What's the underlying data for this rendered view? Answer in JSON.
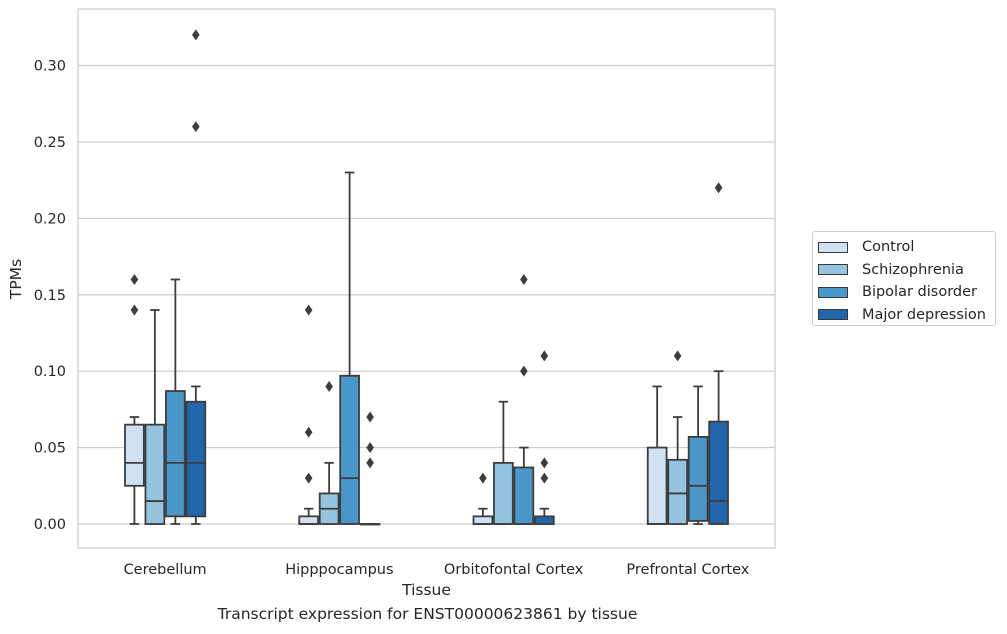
{
  "caption": "Transcript expression for ENST00000623861 by tissue",
  "chart_data": {
    "type": "box",
    "title": "",
    "xlabel": "Tissue",
    "ylabel": "TPMs",
    "ylim": [
      -0.015,
      0.335
    ],
    "yticks": [
      0.0,
      0.05,
      0.1,
      0.15,
      0.2,
      0.25,
      0.3
    ],
    "ytick_labels": [
      "0.00",
      "0.05",
      "0.10",
      "0.15",
      "0.20",
      "0.25",
      "0.30"
    ],
    "grid": "horizontal",
    "legend_position": "right",
    "categories": [
      "Cerebellum",
      "Hipppocampus",
      "Orbitofontal Cortex",
      "Prefrontal Cortex"
    ],
    "series": [
      {
        "name": "Control",
        "color": "#d0e1f2",
        "boxes": [
          {
            "whislo": 0.0,
            "q1": 0.025,
            "med": 0.04,
            "q3": 0.065,
            "whishi": 0.07,
            "fliers": [
              0.14,
              0.16
            ]
          },
          {
            "whislo": 0.0,
            "q1": 0.0,
            "med": 0.0,
            "q3": 0.005,
            "whishi": 0.01,
            "fliers": [
              0.03,
              0.06,
              0.14
            ]
          },
          {
            "whislo": 0.0,
            "q1": 0.0,
            "med": 0.0,
            "q3": 0.005,
            "whishi": 0.01,
            "fliers": [
              0.03
            ]
          },
          {
            "whislo": 0.0,
            "q1": 0.0,
            "med": 0.0,
            "q3": 0.05,
            "whishi": 0.09,
            "fliers": []
          }
        ]
      },
      {
        "name": "Schizophrenia",
        "color": "#94c4df",
        "boxes": [
          {
            "whislo": 0.0,
            "q1": 0.0,
            "med": 0.015,
            "q3": 0.065,
            "whishi": 0.14,
            "fliers": []
          },
          {
            "whislo": 0.0,
            "q1": 0.0,
            "med": 0.01,
            "q3": 0.02,
            "whishi": 0.04,
            "fliers": [
              0.09
            ]
          },
          {
            "whislo": 0.0,
            "q1": 0.0,
            "med": 0.0,
            "q3": 0.04,
            "whishi": 0.08,
            "fliers": []
          },
          {
            "whislo": 0.0,
            "q1": 0.0,
            "med": 0.02,
            "q3": 0.042,
            "whishi": 0.07,
            "fliers": [
              0.11
            ]
          }
        ]
      },
      {
        "name": "Bipolar disorder",
        "color": "#4a98c9",
        "boxes": [
          {
            "whislo": 0.0,
            "q1": 0.005,
            "med": 0.04,
            "q3": 0.087,
            "whishi": 0.16,
            "fliers": []
          },
          {
            "whislo": 0.0,
            "q1": 0.0,
            "med": 0.03,
            "q3": 0.097,
            "whishi": 0.23,
            "fliers": []
          },
          {
            "whislo": 0.0,
            "q1": 0.0,
            "med": 0.0,
            "q3": 0.037,
            "whishi": 0.05,
            "fliers": [
              0.1,
              0.16
            ]
          },
          {
            "whislo": 0.0,
            "q1": 0.002,
            "med": 0.025,
            "q3": 0.057,
            "whishi": 0.09,
            "fliers": []
          }
        ]
      },
      {
        "name": "Major depression",
        "color": "#2166ac",
        "boxes": [
          {
            "whislo": 0.0,
            "q1": 0.005,
            "med": 0.04,
            "q3": 0.08,
            "whishi": 0.09,
            "fliers": [
              0.26,
              0.32
            ]
          },
          {
            "whislo": 0.0,
            "q1": 0.0,
            "med": 0.0,
            "q3": 0.0,
            "whishi": 0.0,
            "fliers": [
              0.04,
              0.05,
              0.07
            ]
          },
          {
            "whislo": 0.0,
            "q1": 0.0,
            "med": 0.0,
            "q3": 0.005,
            "whishi": 0.01,
            "fliers": [
              0.03,
              0.04,
              0.11
            ]
          },
          {
            "whislo": 0.0,
            "q1": 0.0,
            "med": 0.015,
            "q3": 0.067,
            "whishi": 0.1,
            "fliers": [
              0.22
            ]
          }
        ]
      }
    ]
  }
}
